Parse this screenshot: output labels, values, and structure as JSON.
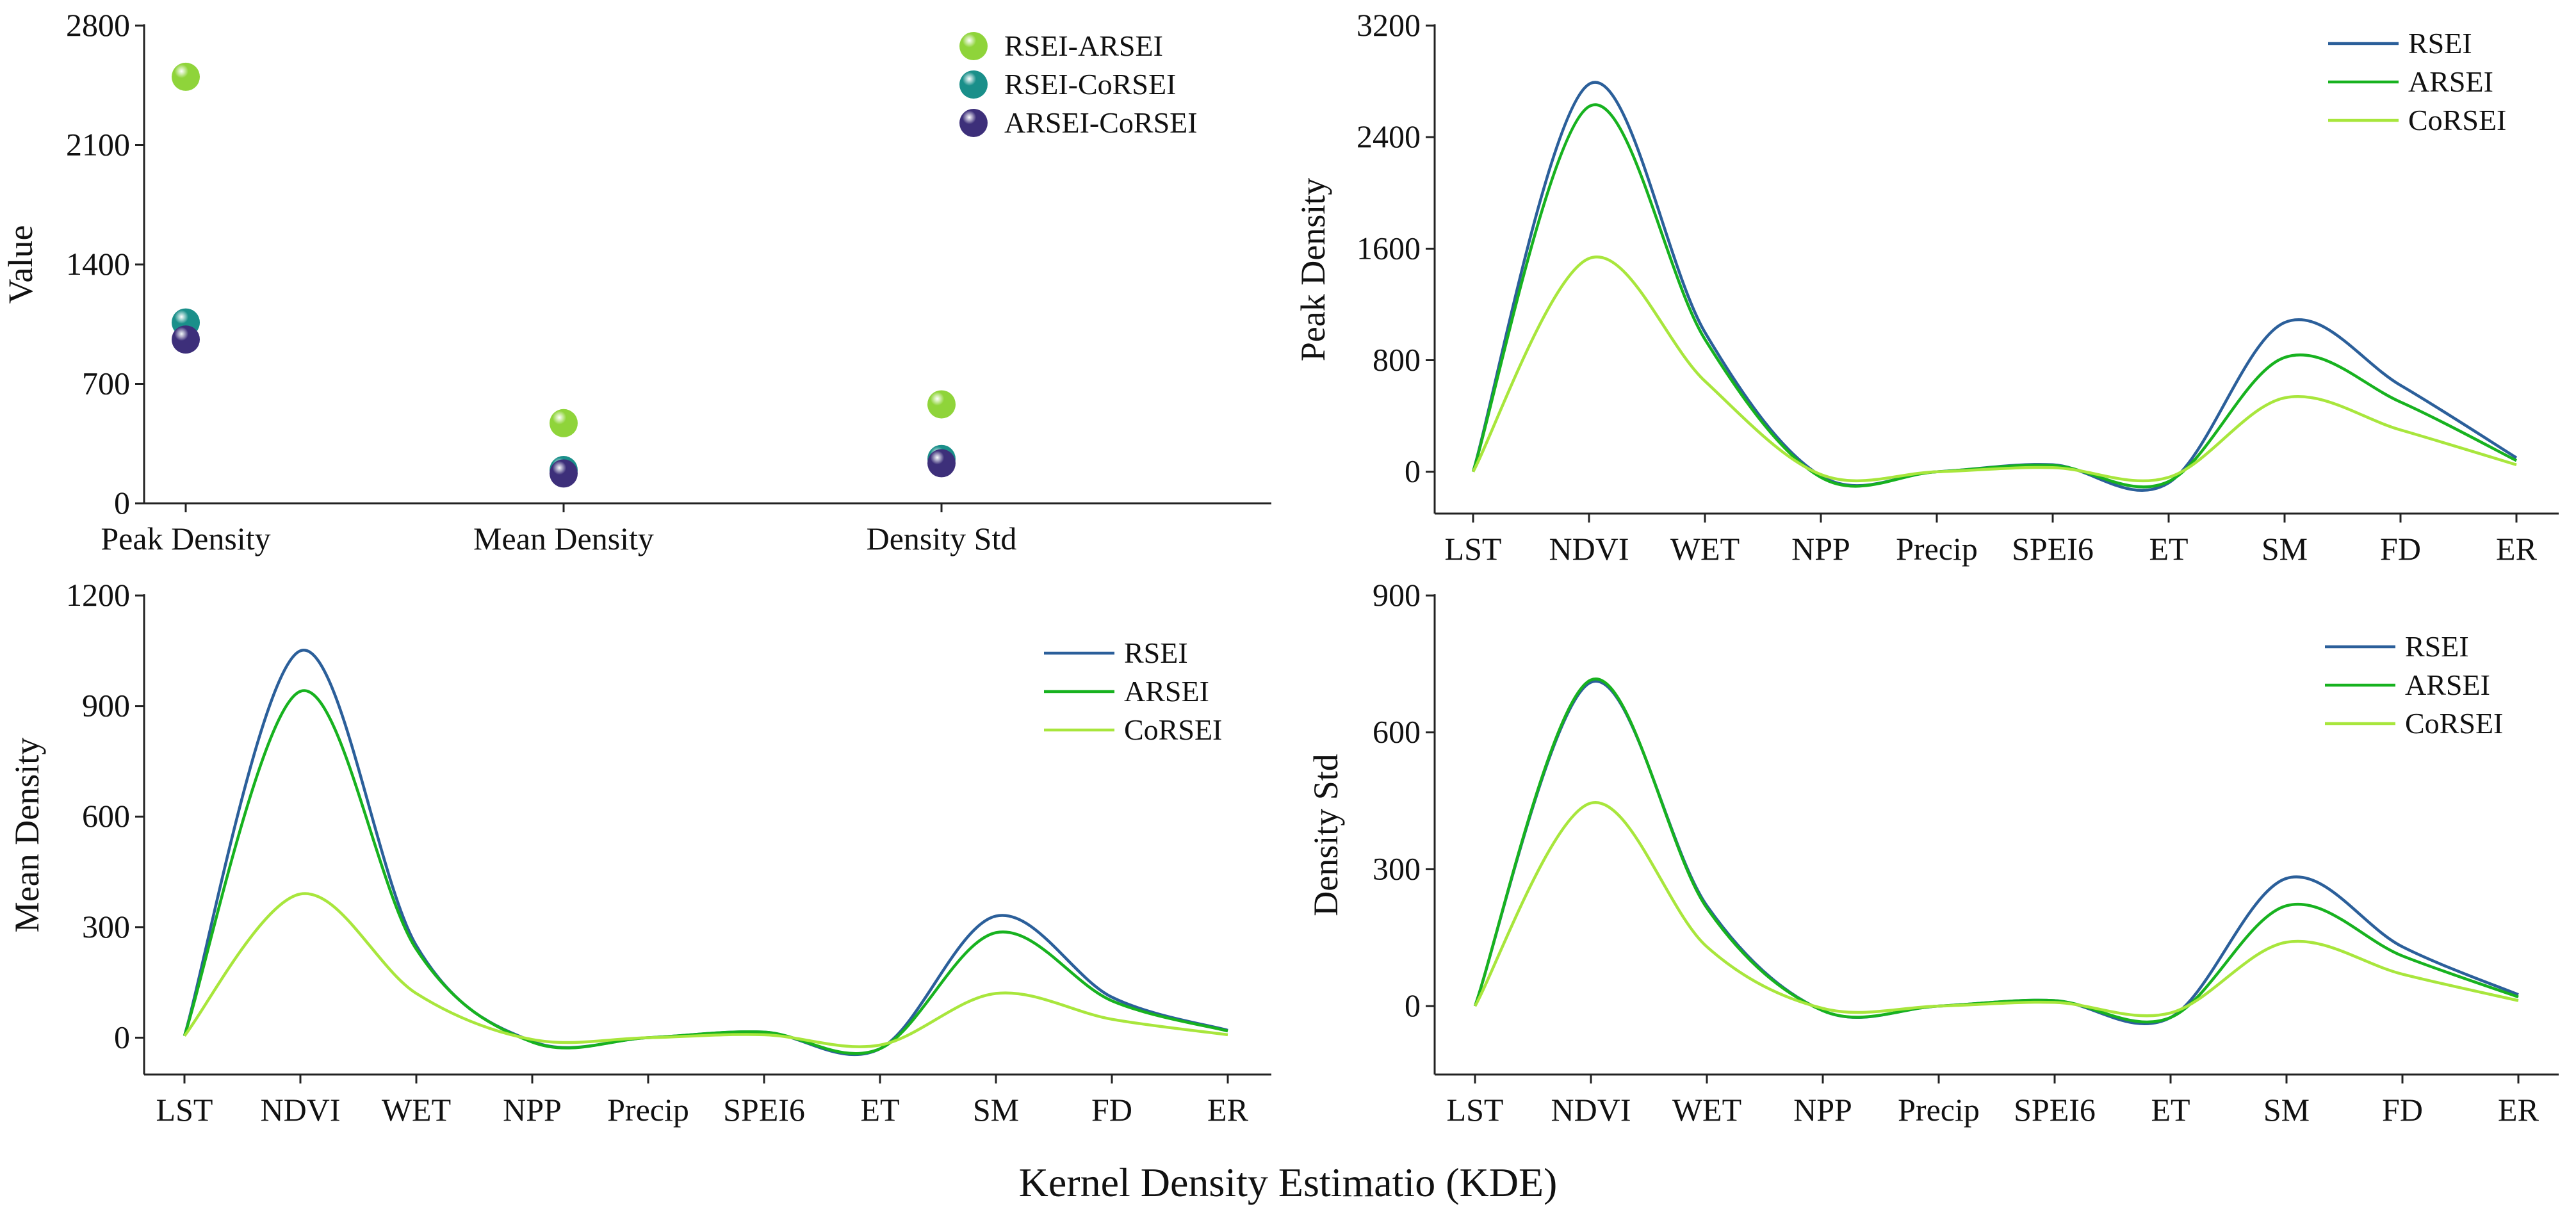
{
  "figure": {
    "xlabel": "Kernel Density Estimatio (KDE)"
  },
  "chart_data": [
    {
      "type": "scatter",
      "title": "",
      "xlabel": "",
      "ylabel": "Value",
      "categories": [
        "Peak Density",
        "Mean Density",
        "Density Std"
      ],
      "ylim": [
        0,
        2800
      ],
      "yticks": [
        0,
        700,
        1400,
        2100,
        2800
      ],
      "legend_position": "top-right",
      "series": [
        {
          "name": "RSEI-ARSEI",
          "color": "#8fd43a",
          "values": [
            2500,
            470,
            580
          ]
        },
        {
          "name": "RSEI-CoRSEI",
          "color": "#1a8f8a",
          "values": [
            1060,
            195,
            260
          ]
        },
        {
          "name": "ARSEI-CoRSEI",
          "color": "#3d2f7a",
          "values": [
            960,
            175,
            235
          ]
        }
      ]
    },
    {
      "type": "line",
      "title": "",
      "xlabel": "",
      "ylabel": "Peak Density",
      "categories": [
        "LST",
        "NDVI",
        "WET",
        "NPP",
        "Precip",
        "SPEI6",
        "ET",
        "SM",
        "FD",
        "ER"
      ],
      "ylim": [
        -300,
        3200
      ],
      "yticks": [
        0,
        800,
        1600,
        2400,
        3200
      ],
      "legend_position": "top-right",
      "series": [
        {
          "name": "RSEI",
          "color": "#2b5f9a",
          "values": [
            0,
            2780,
            1000,
            -30,
            0,
            50,
            -80,
            1070,
            620,
            100
          ]
        },
        {
          "name": "ARSEI",
          "color": "#17b21f",
          "values": [
            0,
            2620,
            950,
            -40,
            0,
            45,
            -70,
            820,
            500,
            80
          ]
        },
        {
          "name": "CoRSEI",
          "color": "#a8e63c",
          "values": [
            0,
            1530,
            650,
            -20,
            0,
            30,
            -40,
            530,
            300,
            50
          ]
        }
      ]
    },
    {
      "type": "line",
      "title": "",
      "xlabel": "",
      "ylabel": "Mean Density",
      "categories": [
        "LST",
        "NDVI",
        "WET",
        "NPP",
        "Precip",
        "SPEI6",
        "ET",
        "SM",
        "FD",
        "ER"
      ],
      "ylim": [
        -100,
        1200
      ],
      "yticks": [
        0,
        300,
        600,
        900,
        1200
      ],
      "legend_position": "top-right",
      "series": [
        {
          "name": "RSEI",
          "color": "#2b5f9a",
          "values": [
            5,
            1050,
            250,
            -10,
            0,
            15,
            -30,
            330,
            110,
            20
          ]
        },
        {
          "name": "ARSEI",
          "color": "#17b21f",
          "values": [
            5,
            940,
            240,
            -12,
            0,
            15,
            -30,
            285,
            100,
            18
          ]
        },
        {
          "name": "CoRSEI",
          "color": "#a8e63c",
          "values": [
            5,
            390,
            120,
            -5,
            0,
            8,
            -20,
            120,
            50,
            8
          ]
        }
      ]
    },
    {
      "type": "line",
      "title": "",
      "xlabel": "",
      "ylabel": "Density Std",
      "categories": [
        "LST",
        "NDVI",
        "WET",
        "NPP",
        "Precip",
        "SPEI6",
        "ET",
        "SM",
        "FD",
        "ER"
      ],
      "ylim": [
        -150,
        900
      ],
      "yticks": [
        0,
        300,
        600,
        900
      ],
      "legend_position": "top-right",
      "series": [
        {
          "name": "RSEI",
          "color": "#2b5f9a",
          "values": [
            0,
            710,
            220,
            -10,
            0,
            12,
            -25,
            280,
            130,
            25
          ]
        },
        {
          "name": "ARSEI",
          "color": "#17b21f",
          "values": [
            0,
            715,
            215,
            -10,
            0,
            12,
            -25,
            220,
            110,
            20
          ]
        },
        {
          "name": "CoRSEI",
          "color": "#a8e63c",
          "values": [
            0,
            445,
            130,
            -5,
            0,
            8,
            -15,
            140,
            70,
            12
          ]
        }
      ]
    }
  ]
}
